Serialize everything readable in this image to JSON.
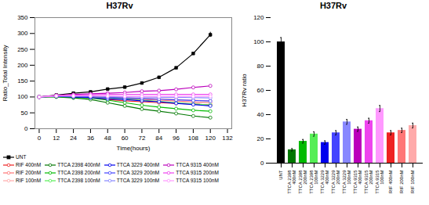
{
  "chart_data": [
    {
      "type": "line",
      "title": "H37Rv",
      "x_label": "Time(hours)",
      "y_label": "Ratio_Total Intensity",
      "x": [
        0,
        12,
        24,
        36,
        48,
        60,
        72,
        84,
        96,
        108,
        120
      ],
      "series": [
        {
          "name": "UNT",
          "color": "#000000",
          "marker": "square",
          "values": [
            100,
            106,
            112,
            116,
            125,
            131,
            144,
            162,
            192,
            237,
            296
          ],
          "errors": [
            null,
            null,
            null,
            null,
            null,
            null,
            null,
            null,
            null,
            null,
            8
          ]
        },
        {
          "name": "RIF 400nM",
          "color": "#EE2222",
          "marker": "circle",
          "values": [
            100,
            102,
            100,
            98,
            92,
            88,
            85,
            82,
            80,
            78,
            75
          ]
        },
        {
          "name": "RIF 200nM",
          "color": "#FF7777",
          "marker": "circle",
          "values": [
            100,
            103,
            102,
            100,
            97,
            94,
            92,
            90,
            87,
            84,
            82
          ]
        },
        {
          "name": "RIF 100nM",
          "color": "#FFAAAA",
          "marker": "circle",
          "values": [
            100,
            104,
            104,
            103,
            100,
            98,
            96,
            94,
            92,
            90,
            88
          ]
        },
        {
          "name": "TTCA 2398 400nM",
          "color": "#007700",
          "marker": "circle",
          "values": [
            100,
            100,
            97,
            92,
            82,
            72,
            62,
            55,
            48,
            40,
            35
          ]
        },
        {
          "name": "TTCA 2398 200nM",
          "color": "#00BB00",
          "marker": "circle",
          "values": [
            100,
            101,
            99,
            97,
            90,
            82,
            74,
            68,
            63,
            58,
            55
          ]
        },
        {
          "name": "TTCA 2398 100nM",
          "color": "#55EE55",
          "marker": "circle",
          "values": [
            100,
            103,
            102,
            101,
            98,
            94,
            90,
            86,
            82,
            78,
            75
          ]
        },
        {
          "name": "TTCA 3229 400nM",
          "color": "#0000EE",
          "marker": "circle",
          "values": [
            100,
            102,
            100,
            98,
            94,
            92,
            88,
            85,
            80,
            76,
            72
          ]
        },
        {
          "name": "TTCA 3229 200nM",
          "color": "#4444FF",
          "marker": "circle",
          "values": [
            100,
            103,
            102,
            101,
            99,
            97,
            95,
            93,
            91,
            89,
            87
          ]
        },
        {
          "name": "TTCA 3229 100nM",
          "color": "#8888FF",
          "marker": "circle",
          "values": [
            100,
            104,
            104,
            104,
            102,
            101,
            100,
            99,
            99,
            98,
            97
          ]
        },
        {
          "name": "TTCA 9315 400nM",
          "color": "#BB00BB",
          "marker": "circle",
          "values": [
            100,
            105,
            108,
            110,
            112,
            114,
            118,
            120,
            124,
            130,
            135
          ]
        },
        {
          "name": "TTCA 9315 200nM",
          "color": "#EE44EE",
          "marker": "circle",
          "values": [
            100,
            104,
            106,
            107,
            108,
            108,
            108,
            108,
            108,
            108,
            108
          ]
        },
        {
          "name": "TTCA 9315 100nM",
          "color": "#FF99FF",
          "marker": "circle",
          "values": [
            100,
            103,
            103,
            103,
            103,
            102,
            102,
            102,
            102,
            102,
            102
          ]
        }
      ],
      "xlim": [
        -3,
        135
      ],
      "xticks": [
        0,
        12,
        24,
        36,
        48,
        60,
        72,
        84,
        96,
        108,
        120,
        132
      ],
      "ylim": [
        0,
        350
      ],
      "yticks": [
        0,
        50,
        100,
        150,
        200,
        250,
        300,
        350
      ],
      "legend": "bottom"
    },
    {
      "type": "bar",
      "title": "H37Rv",
      "y_label": "H37Rv ratio",
      "categories": [
        "UNT",
        "TTCA 2398\n400nM",
        "TTCA 2398\n200nM",
        "TTCA 2398\n100nM",
        "TTCA 3229\n400nM",
        "TTCA 3229\n200nM",
        "TTCA 3229\n100nM",
        "TTCA 9315\n400nM",
        "TTCA 9315\n200nM",
        "TTCA 9315\n100nM",
        "RIF 400nM",
        "RIF 200nM",
        "RIF 100nM"
      ],
      "values": [
        100,
        11,
        18,
        24,
        17,
        25,
        34,
        28,
        35,
        45,
        25,
        27,
        31
      ],
      "errors": [
        3.5,
        1.0,
        1.5,
        1.8,
        1.4,
        1.8,
        2.0,
        1.8,
        2.0,
        2.5,
        1.8,
        1.8,
        2.0
      ],
      "colors": [
        "#000000",
        "#007700",
        "#00BB00",
        "#55EE55",
        "#0000EE",
        "#4444FF",
        "#8888FF",
        "#BB00BB",
        "#EE44EE",
        "#FF99FF",
        "#EE2222",
        "#FF7777",
        "#FFAAAA"
      ],
      "ylim": [
        0,
        120
      ],
      "yticks": [
        0,
        20,
        40,
        60,
        80,
        100,
        120
      ]
    }
  ]
}
